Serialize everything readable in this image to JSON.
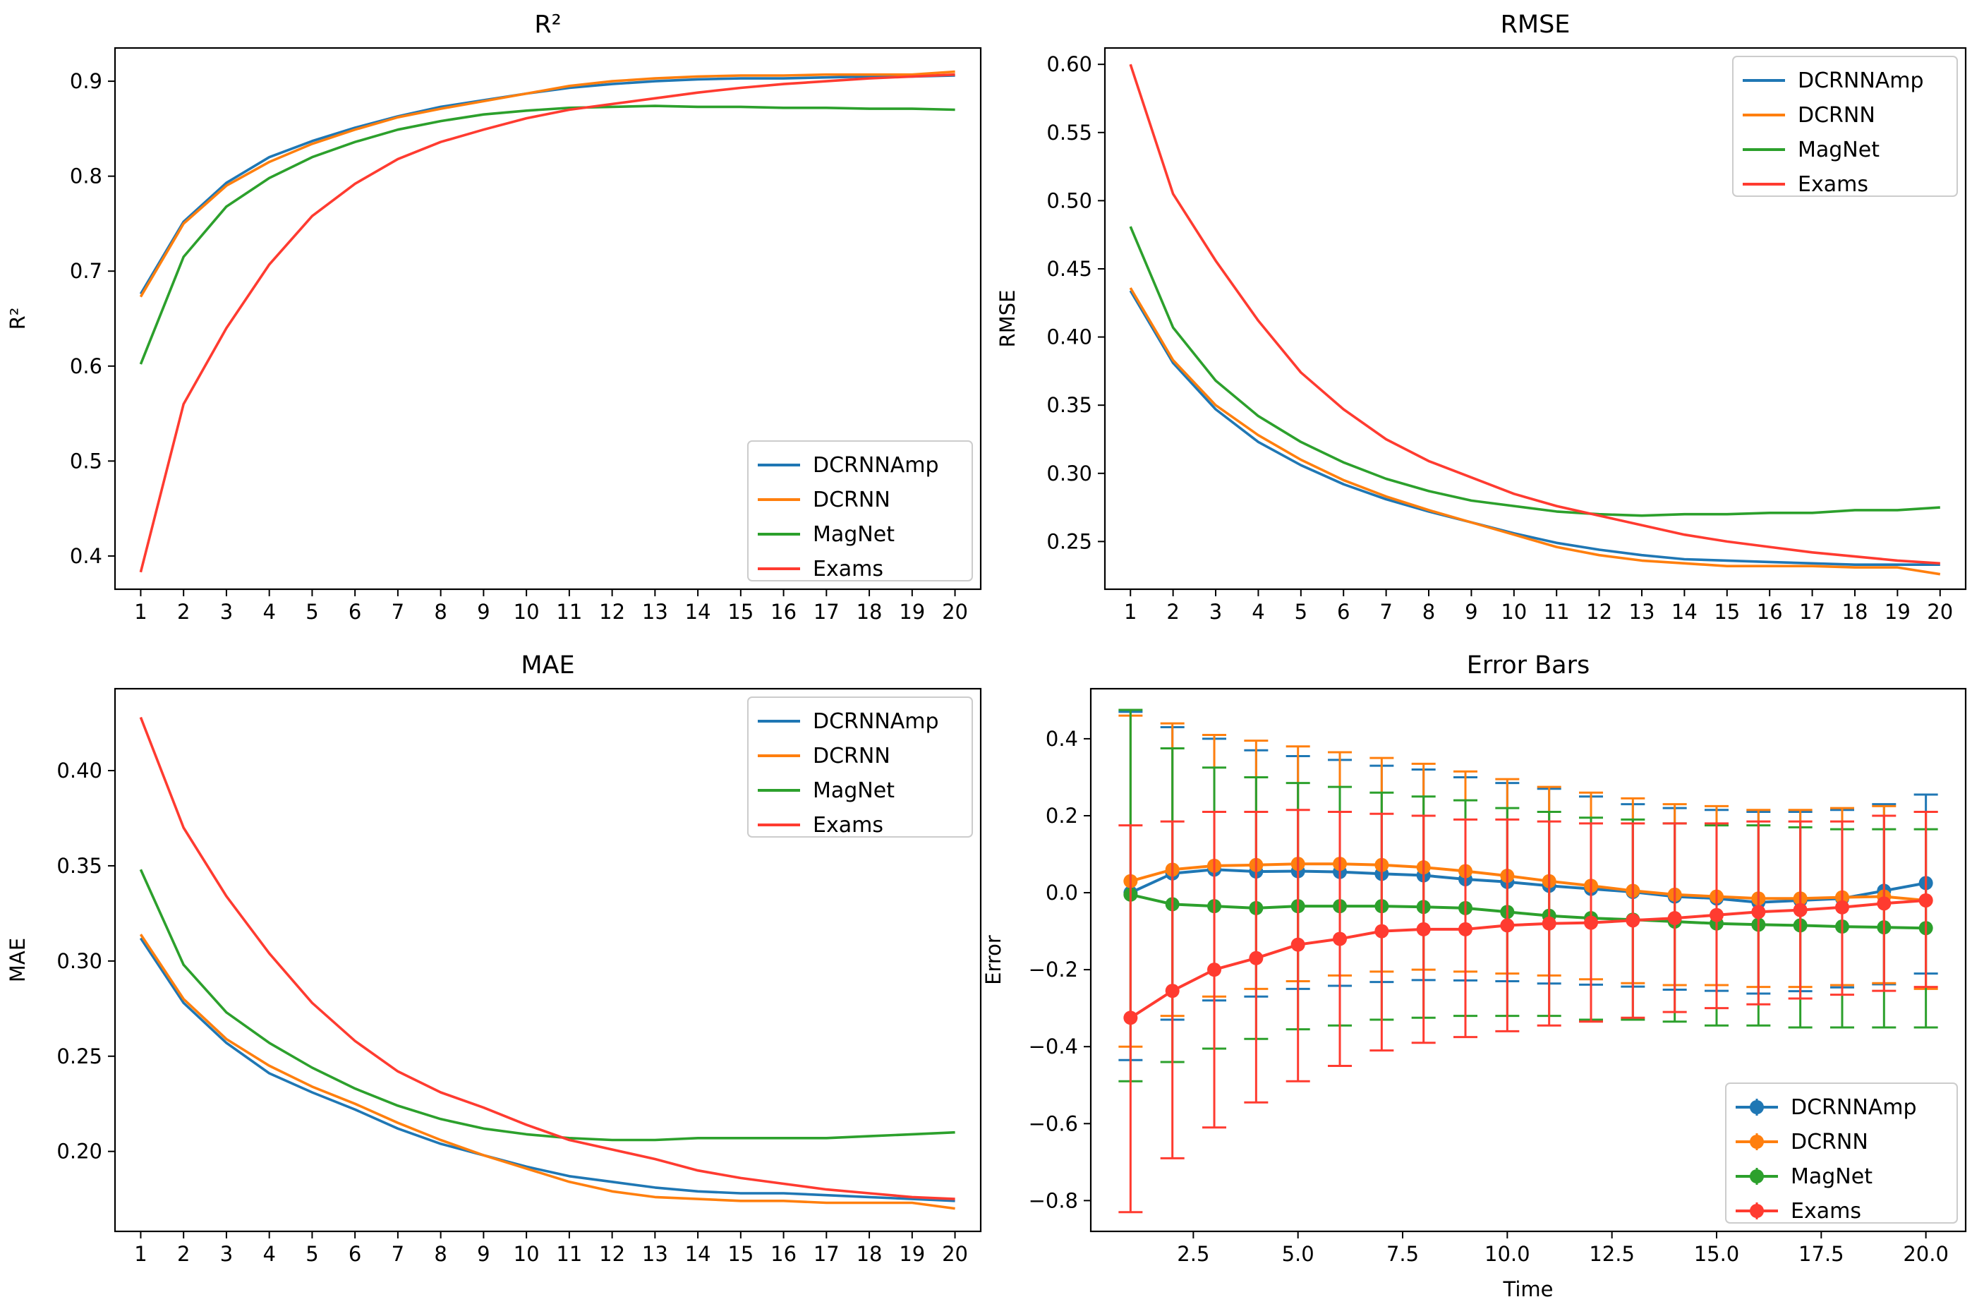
{
  "chart_data": [
    {
      "id": "r2",
      "type": "line",
      "title": "R²",
      "xlabel": "",
      "ylabel": "R²",
      "x": [
        1,
        2,
        3,
        4,
        5,
        6,
        7,
        8,
        9,
        10,
        11,
        12,
        13,
        14,
        15,
        16,
        17,
        18,
        19,
        20
      ],
      "xlim": [
        0.4,
        20.6
      ],
      "ylim": [
        0.365,
        0.935
      ],
      "xticks": [
        1,
        2,
        3,
        4,
        5,
        6,
        7,
        8,
        9,
        10,
        11,
        12,
        13,
        14,
        15,
        16,
        17,
        18,
        19,
        20
      ],
      "xtick_labels": [
        "1",
        "2",
        "3",
        "4",
        "5",
        "6",
        "7",
        "8",
        "9",
        "10",
        "11",
        "12",
        "13",
        "14",
        "15",
        "16",
        "17",
        "18",
        "19",
        "20"
      ],
      "yticks": [
        0.4,
        0.5,
        0.6,
        0.7,
        0.8,
        0.9
      ],
      "ytick_labels": [
        "0.4",
        "0.5",
        "0.6",
        "0.7",
        "0.8",
        "0.9"
      ],
      "legend_loc": "lower-right",
      "grid": false,
      "series": [
        {
          "name": "DCRNNAmp",
          "color": "#1f77b4",
          "values": [
            0.676,
            0.752,
            0.793,
            0.82,
            0.837,
            0.851,
            0.863,
            0.873,
            0.88,
            0.887,
            0.893,
            0.897,
            0.9,
            0.902,
            0.903,
            0.903,
            0.904,
            0.905,
            0.905,
            0.906
          ]
        },
        {
          "name": "DCRNN",
          "color": "#ff7f0e",
          "values": [
            0.673,
            0.75,
            0.79,
            0.815,
            0.834,
            0.849,
            0.862,
            0.871,
            0.879,
            0.887,
            0.895,
            0.9,
            0.903,
            0.905,
            0.906,
            0.906,
            0.907,
            0.907,
            0.907,
            0.91
          ]
        },
        {
          "name": "MagNet",
          "color": "#2ca02c",
          "values": [
            0.602,
            0.715,
            0.768,
            0.798,
            0.82,
            0.836,
            0.849,
            0.858,
            0.865,
            0.869,
            0.872,
            0.873,
            0.874,
            0.873,
            0.873,
            0.872,
            0.872,
            0.871,
            0.871,
            0.87
          ]
        },
        {
          "name": "Exams",
          "color": "#ff3b30",
          "values": [
            0.383,
            0.56,
            0.64,
            0.707,
            0.758,
            0.792,
            0.818,
            0.836,
            0.849,
            0.861,
            0.87,
            0.876,
            0.882,
            0.888,
            0.893,
            0.897,
            0.9,
            0.903,
            0.905,
            0.907
          ]
        }
      ]
    },
    {
      "id": "rmse",
      "type": "line",
      "title": "RMSE",
      "xlabel": "",
      "ylabel": "RMSE",
      "x": [
        1,
        2,
        3,
        4,
        5,
        6,
        7,
        8,
        9,
        10,
        11,
        12,
        13,
        14,
        15,
        16,
        17,
        18,
        19,
        20
      ],
      "xlim": [
        0.4,
        20.6
      ],
      "ylim": [
        0.215,
        0.612
      ],
      "xticks": [
        1,
        2,
        3,
        4,
        5,
        6,
        7,
        8,
        9,
        10,
        11,
        12,
        13,
        14,
        15,
        16,
        17,
        18,
        19,
        20
      ],
      "xtick_labels": [
        "1",
        "2",
        "3",
        "4",
        "5",
        "6",
        "7",
        "8",
        "9",
        "10",
        "11",
        "12",
        "13",
        "14",
        "15",
        "16",
        "17",
        "18",
        "19",
        "20"
      ],
      "yticks": [
        0.25,
        0.3,
        0.35,
        0.4,
        0.45,
        0.5,
        0.55,
        0.6
      ],
      "ytick_labels": [
        "0.25",
        "0.30",
        "0.35",
        "0.40",
        "0.45",
        "0.50",
        "0.55",
        "0.60"
      ],
      "legend_loc": "upper-right",
      "grid": false,
      "series": [
        {
          "name": "DCRNNAmp",
          "color": "#1f77b4",
          "values": [
            0.434,
            0.381,
            0.347,
            0.323,
            0.306,
            0.292,
            0.281,
            0.272,
            0.264,
            0.256,
            0.249,
            0.244,
            0.24,
            0.237,
            0.236,
            0.235,
            0.234,
            0.233,
            0.233,
            0.233
          ]
        },
        {
          "name": "DCRNN",
          "color": "#ff7f0e",
          "values": [
            0.436,
            0.383,
            0.35,
            0.328,
            0.31,
            0.295,
            0.283,
            0.273,
            0.264,
            0.255,
            0.246,
            0.24,
            0.236,
            0.234,
            0.232,
            0.232,
            0.232,
            0.231,
            0.231,
            0.226
          ]
        },
        {
          "name": "MagNet",
          "color": "#2ca02c",
          "values": [
            0.481,
            0.407,
            0.368,
            0.342,
            0.323,
            0.308,
            0.296,
            0.287,
            0.28,
            0.276,
            0.272,
            0.27,
            0.269,
            0.27,
            0.27,
            0.271,
            0.271,
            0.273,
            0.273,
            0.275
          ]
        },
        {
          "name": "Exams",
          "color": "#ff3b30",
          "values": [
            0.6,
            0.505,
            0.456,
            0.412,
            0.374,
            0.347,
            0.325,
            0.309,
            0.297,
            0.285,
            0.276,
            0.269,
            0.262,
            0.255,
            0.25,
            0.246,
            0.242,
            0.239,
            0.236,
            0.234
          ]
        }
      ]
    },
    {
      "id": "mae",
      "type": "line",
      "title": "MAE",
      "xlabel": "",
      "ylabel": "MAE",
      "x": [
        1,
        2,
        3,
        4,
        5,
        6,
        7,
        8,
        9,
        10,
        11,
        12,
        13,
        14,
        15,
        16,
        17,
        18,
        19,
        20
      ],
      "xlim": [
        0.4,
        20.6
      ],
      "ylim": [
        0.158,
        0.443
      ],
      "xticks": [
        1,
        2,
        3,
        4,
        5,
        6,
        7,
        8,
        9,
        10,
        11,
        12,
        13,
        14,
        15,
        16,
        17,
        18,
        19,
        20
      ],
      "xtick_labels": [
        "1",
        "2",
        "3",
        "4",
        "5",
        "6",
        "7",
        "8",
        "9",
        "10",
        "11",
        "12",
        "13",
        "14",
        "15",
        "16",
        "17",
        "18",
        "19",
        "20"
      ],
      "yticks": [
        0.2,
        0.25,
        0.3,
        0.35,
        0.4
      ],
      "ytick_labels": [
        "0.20",
        "0.25",
        "0.30",
        "0.35",
        "0.40"
      ],
      "legend_loc": "upper-right",
      "grid": false,
      "series": [
        {
          "name": "DCRNNAmp",
          "color": "#1f77b4",
          "values": [
            0.312,
            0.278,
            0.257,
            0.241,
            0.231,
            0.222,
            0.212,
            0.204,
            0.198,
            0.192,
            0.187,
            0.184,
            0.181,
            0.179,
            0.178,
            0.178,
            0.177,
            0.176,
            0.175,
            0.174
          ]
        },
        {
          "name": "DCRNN",
          "color": "#ff7f0e",
          "values": [
            0.314,
            0.28,
            0.259,
            0.245,
            0.234,
            0.225,
            0.215,
            0.206,
            0.198,
            0.191,
            0.184,
            0.179,
            0.176,
            0.175,
            0.174,
            0.174,
            0.173,
            0.173,
            0.173,
            0.17
          ]
        },
        {
          "name": "MagNet",
          "color": "#2ca02c",
          "values": [
            0.348,
            0.298,
            0.273,
            0.257,
            0.244,
            0.233,
            0.224,
            0.217,
            0.212,
            0.209,
            0.207,
            0.206,
            0.206,
            0.207,
            0.207,
            0.207,
            0.207,
            0.208,
            0.209,
            0.21
          ]
        },
        {
          "name": "Exams",
          "color": "#ff3b30",
          "values": [
            0.428,
            0.37,
            0.334,
            0.304,
            0.278,
            0.258,
            0.242,
            0.231,
            0.223,
            0.214,
            0.206,
            0.201,
            0.196,
            0.19,
            0.186,
            0.183,
            0.18,
            0.178,
            0.176,
            0.175
          ]
        }
      ]
    },
    {
      "id": "errbars",
      "type": "line",
      "title": "Error Bars",
      "xlabel": "Time",
      "ylabel": "Error",
      "x": [
        1,
        2,
        3,
        4,
        5,
        6,
        7,
        8,
        9,
        10,
        11,
        12,
        13,
        14,
        15,
        16,
        17,
        18,
        19,
        20
      ],
      "xlim": [
        0.05,
        20.95
      ],
      "ylim": [
        -0.88,
        0.53
      ],
      "xticks": [
        2.5,
        5.0,
        7.5,
        10.0,
        12.5,
        15.0,
        17.5,
        20.0
      ],
      "xtick_labels": [
        "2.5",
        "5.0",
        "7.5",
        "10.0",
        "12.5",
        "15.0",
        "17.5",
        "20.0"
      ],
      "yticks": [
        -0.8,
        -0.6,
        -0.4,
        -0.2,
        0.0,
        0.2,
        0.4
      ],
      "ytick_labels": [
        "−0.8",
        "−0.6",
        "−0.4",
        "−0.2",
        "0.0",
        "0.2",
        "0.4"
      ],
      "legend_loc": "lower-right",
      "grid": false,
      "series": [
        {
          "name": "DCRNNAmp",
          "color": "#1f77b4",
          "values": [
            0.0,
            0.05,
            0.06,
            0.055,
            0.056,
            0.054,
            0.049,
            0.045,
            0.035,
            0.028,
            0.018,
            0.01,
            0.002,
            -0.01,
            -0.015,
            -0.025,
            -0.02,
            -0.015,
            0.005,
            0.025
          ],
          "lower": [
            -0.435,
            -0.33,
            -0.28,
            -0.27,
            -0.25,
            -0.242,
            -0.232,
            -0.227,
            -0.228,
            -0.23,
            -0.236,
            -0.239,
            -0.244,
            -0.252,
            -0.255,
            -0.262,
            -0.256,
            -0.246,
            -0.238,
            -0.21
          ],
          "upper": [
            0.47,
            0.43,
            0.4,
            0.37,
            0.355,
            0.345,
            0.33,
            0.32,
            0.3,
            0.285,
            0.27,
            0.25,
            0.23,
            0.22,
            0.215,
            0.21,
            0.21,
            0.215,
            0.23,
            0.255
          ]
        },
        {
          "name": "DCRNN",
          "color": "#ff7f0e",
          "values": [
            0.03,
            0.06,
            0.07,
            0.072,
            0.075,
            0.075,
            0.072,
            0.066,
            0.056,
            0.044,
            0.03,
            0.018,
            0.005,
            -0.005,
            -0.01,
            -0.015,
            -0.015,
            -0.012,
            -0.01,
            -0.02
          ],
          "lower": [
            -0.4,
            -0.32,
            -0.27,
            -0.25,
            -0.23,
            -0.215,
            -0.205,
            -0.2,
            -0.205,
            -0.21,
            -0.215,
            -0.225,
            -0.235,
            -0.24,
            -0.24,
            -0.245,
            -0.245,
            -0.24,
            -0.235,
            -0.25
          ],
          "upper": [
            0.46,
            0.44,
            0.41,
            0.395,
            0.38,
            0.365,
            0.35,
            0.335,
            0.315,
            0.295,
            0.275,
            0.26,
            0.245,
            0.23,
            0.225,
            0.215,
            0.215,
            0.22,
            0.225,
            0.21
          ]
        },
        {
          "name": "MagNet",
          "color": "#2ca02c",
          "values": [
            -0.005,
            -0.03,
            -0.035,
            -0.04,
            -0.035,
            -0.035,
            -0.035,
            -0.037,
            -0.04,
            -0.05,
            -0.06,
            -0.066,
            -0.07,
            -0.075,
            -0.08,
            -0.083,
            -0.085,
            -0.088,
            -0.09,
            -0.092
          ],
          "lower": [
            -0.49,
            -0.44,
            -0.405,
            -0.38,
            -0.355,
            -0.345,
            -0.33,
            -0.325,
            -0.32,
            -0.32,
            -0.32,
            -0.33,
            -0.33,
            -0.335,
            -0.345,
            -0.345,
            -0.35,
            -0.35,
            -0.35,
            -0.35
          ],
          "upper": [
            0.475,
            0.375,
            0.325,
            0.3,
            0.285,
            0.275,
            0.26,
            0.25,
            0.24,
            0.22,
            0.21,
            0.195,
            0.19,
            0.18,
            0.175,
            0.175,
            0.17,
            0.165,
            0.165,
            0.165
          ]
        },
        {
          "name": "Exams",
          "color": "#ff3b30",
          "values": [
            -0.325,
            -0.255,
            -0.2,
            -0.17,
            -0.135,
            -0.12,
            -0.1,
            -0.095,
            -0.095,
            -0.085,
            -0.08,
            -0.078,
            -0.072,
            -0.066,
            -0.058,
            -0.05,
            -0.045,
            -0.038,
            -0.028,
            -0.02
          ],
          "lower": [
            -0.83,
            -0.69,
            -0.61,
            -0.545,
            -0.49,
            -0.45,
            -0.41,
            -0.39,
            -0.375,
            -0.36,
            -0.345,
            -0.335,
            -0.325,
            -0.31,
            -0.3,
            -0.29,
            -0.275,
            -0.265,
            -0.255,
            -0.245
          ],
          "upper": [
            0.175,
            0.185,
            0.21,
            0.21,
            0.215,
            0.21,
            0.205,
            0.2,
            0.19,
            0.19,
            0.185,
            0.18,
            0.18,
            0.18,
            0.18,
            0.185,
            0.185,
            0.185,
            0.2,
            0.21
          ]
        }
      ]
    }
  ]
}
